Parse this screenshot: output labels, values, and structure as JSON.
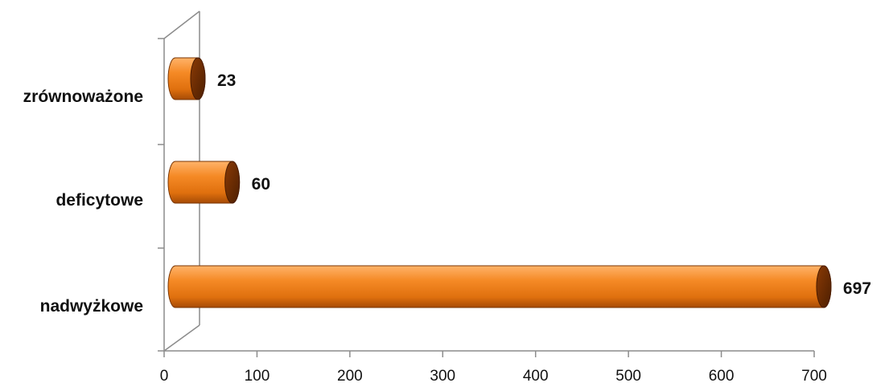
{
  "chart_data": {
    "type": "bar",
    "orientation": "horizontal",
    "style": "3d-cylinder",
    "categories": [
      "zrównoważone",
      "deficytowe",
      "nadwyżkowe"
    ],
    "values": [
      23,
      60,
      697
    ],
    "data_labels": [
      "23",
      "60",
      "697"
    ],
    "xlim": [
      0,
      700
    ],
    "x_ticks": [
      0,
      100,
      200,
      300,
      400,
      500,
      600,
      700
    ],
    "x_tick_labels": [
      "0",
      "100",
      "200",
      "300",
      "400",
      "500",
      "600",
      "700"
    ],
    "title": "",
    "xlabel": "",
    "ylabel": "",
    "legend": "none",
    "grid": false,
    "colors": {
      "bar": "#f07d1a",
      "bar_light": "#ffb36a",
      "bar_dark": "#a64b06",
      "cap": "#6b2c02",
      "axis": "#8c8c8c"
    }
  }
}
